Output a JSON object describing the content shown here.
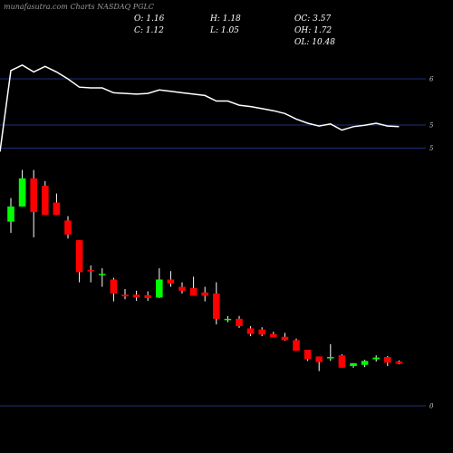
{
  "header": {
    "source_label": "munafasutra.com",
    "chart_label": "Charts NASDAQ PGLC",
    "O": "O: 1.16",
    "C": "C: 1.12",
    "H": "H: 1.18",
    "L": "L: 1.05",
    "OC": "OC: 3.57",
    "OH": "OH: 1.72",
    "OL": "OL: 10.48"
  },
  "colors": {
    "up": "#00ff00",
    "down": "#ff0000",
    "wick": "#ffffff",
    "grid": "#1f2f7a",
    "line": "#ffffff",
    "background": "#000000"
  },
  "chart_data": {
    "type": "candlestick",
    "grid": true,
    "upper_panel": {
      "yticks": [
        {
          "value": 6,
          "label": "6"
        },
        {
          "value": 5,
          "label": "5"
        }
      ],
      "ylim": [
        4.85,
        6.55
      ],
      "line": [
        4.95,
        6.12,
        6.2,
        6.1,
        6.18,
        6.1,
        6.0,
        5.88,
        5.87,
        5.87,
        5.8,
        5.79,
        5.78,
        5.79,
        5.84,
        5.82,
        5.8,
        5.78,
        5.76,
        5.68,
        5.68,
        5.62,
        5.6,
        5.57,
        5.54,
        5.5,
        5.42,
        5.36,
        5.32,
        5.35,
        5.26,
        5.31,
        5.33,
        5.36,
        5.32,
        5.31
      ]
    },
    "price_panel": {
      "yticks": [
        {
          "value": 5,
          "label": "5"
        },
        {
          "value": 0,
          "label": "0"
        }
      ],
      "ylim": [
        0,
        5
      ],
      "candles": [
        {
          "o": 3.28,
          "h": 3.7,
          "l": 3.08,
          "c": 3.55
        },
        {
          "o": 3.55,
          "h": 4.2,
          "l": 3.55,
          "c": 4.05
        },
        {
          "o": 4.05,
          "h": 4.2,
          "l": 3.0,
          "c": 3.45
        },
        {
          "o": 3.92,
          "h": 4.0,
          "l": 3.4,
          "c": 3.4
        },
        {
          "o": 3.62,
          "h": 3.78,
          "l": 3.4,
          "c": 3.4
        },
        {
          "o": 3.3,
          "h": 3.38,
          "l": 2.98,
          "c": 3.05
        },
        {
          "o": 2.95,
          "h": 2.95,
          "l": 2.2,
          "c": 2.38
        },
        {
          "o": 2.42,
          "h": 2.5,
          "l": 2.2,
          "c": 2.4
        },
        {
          "o": 2.35,
          "h": 2.45,
          "l": 2.12,
          "c": 2.35
        },
        {
          "o": 2.25,
          "h": 2.28,
          "l": 1.86,
          "c": 2.0
        },
        {
          "o": 1.98,
          "h": 2.08,
          "l": 1.9,
          "c": 1.95
        },
        {
          "o": 1.98,
          "h": 2.05,
          "l": 1.87,
          "c": 1.93
        },
        {
          "o": 1.97,
          "h": 2.04,
          "l": 1.87,
          "c": 1.92
        },
        {
          "o": 1.93,
          "h": 2.45,
          "l": 1.92,
          "c": 2.25
        },
        {
          "o": 2.25,
          "h": 2.4,
          "l": 2.12,
          "c": 2.18
        },
        {
          "o": 2.12,
          "h": 2.2,
          "l": 2.0,
          "c": 2.05
        },
        {
          "o": 2.1,
          "h": 2.3,
          "l": 1.96,
          "c": 1.96
        },
        {
          "o": 2.02,
          "h": 2.12,
          "l": 1.86,
          "c": 1.96
        },
        {
          "o": 2.0,
          "h": 2.2,
          "l": 1.45,
          "c": 1.55
        },
        {
          "o": 1.55,
          "h": 1.6,
          "l": 1.49,
          "c": 1.55
        },
        {
          "o": 1.55,
          "h": 1.6,
          "l": 1.39,
          "c": 1.42
        },
        {
          "o": 1.38,
          "h": 1.42,
          "l": 1.24,
          "c": 1.28
        },
        {
          "o": 1.36,
          "h": 1.4,
          "l": 1.24,
          "c": 1.27
        },
        {
          "o": 1.28,
          "h": 1.32,
          "l": 1.22,
          "c": 1.22
        },
        {
          "o": 1.23,
          "h": 1.3,
          "l": 1.16,
          "c": 1.17
        },
        {
          "o": 1.17,
          "h": 1.2,
          "l": 0.98,
          "c": 0.98
        },
        {
          "o": 1.0,
          "h": 1.0,
          "l": 0.8,
          "c": 0.83
        },
        {
          "o": 0.88,
          "h": 0.88,
          "l": 0.62,
          "c": 0.78
        },
        {
          "o": 0.87,
          "h": 1.1,
          "l": 0.8,
          "c": 0.87
        },
        {
          "o": 0.9,
          "h": 0.92,
          "l": 0.68,
          "c": 0.68
        },
        {
          "o": 0.71,
          "h": 0.76,
          "l": 0.68,
          "c": 0.76
        },
        {
          "o": 0.73,
          "h": 0.82,
          "l": 0.69,
          "c": 0.8
        },
        {
          "o": 0.83,
          "h": 0.9,
          "l": 0.79,
          "c": 0.86
        },
        {
          "o": 0.87,
          "h": 0.89,
          "l": 0.71,
          "c": 0.77
        },
        {
          "o": 0.79,
          "h": 0.81,
          "l": 0.74,
          "c": 0.75
        }
      ]
    }
  }
}
